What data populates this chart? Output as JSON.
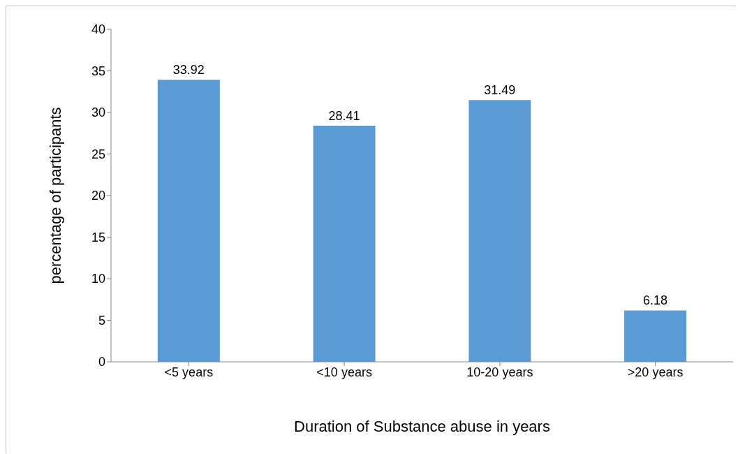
{
  "chart_data": {
    "type": "bar",
    "xlabel": "Duration of Substance abuse in years",
    "ylabel": "percentage of participants",
    "categories": [
      "<5 years",
      "<10 years",
      "10-20 years",
      ">20 years"
    ],
    "values": [
      33.92,
      28.41,
      31.49,
      6.18
    ],
    "color": "#5b9bd5",
    "ylim": [
      0,
      40
    ],
    "yticks": [
      0,
      5,
      10,
      15,
      20,
      25,
      30,
      35,
      40
    ],
    "data_labels": true
  }
}
